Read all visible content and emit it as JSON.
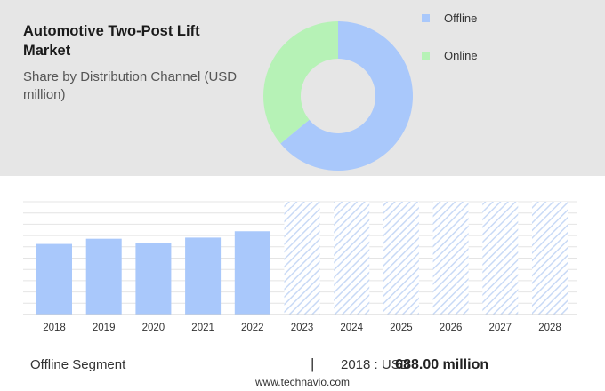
{
  "header": {
    "title": "Automotive Two-Post Lift Market",
    "subtitle": "Share by Distribution Channel (USD million)"
  },
  "colors": {
    "offline": "#a9c8fb",
    "online": "#b6f2b6",
    "bar": "#a9c8fb",
    "forecast_hatch": "#c9daf6"
  },
  "chart_data": [
    {
      "type": "pie",
      "donut": true,
      "labels": [
        "Offline",
        "Online"
      ],
      "values": [
        64,
        36
      ],
      "legend": "right"
    },
    {
      "type": "bar",
      "categories": [
        "2018",
        "2019",
        "2020",
        "2021",
        "2022",
        "2023",
        "2024",
        "2025",
        "2026",
        "2027",
        "2028"
      ],
      "values": [
        688,
        739,
        695,
        750,
        812,
        null,
        null,
        null,
        null,
        null,
        null
      ],
      "forecast_categories": [
        "2023",
        "2024",
        "2025",
        "2026",
        "2027",
        "2028"
      ],
      "ylim": [
        0,
        1100
      ],
      "grid": true
    }
  ],
  "footer": {
    "segment_label": "Offline Segment",
    "separator": "|",
    "year_text": "2018 : USD",
    "value_text": "688.00 million",
    "source": "www.technavio.com"
  }
}
